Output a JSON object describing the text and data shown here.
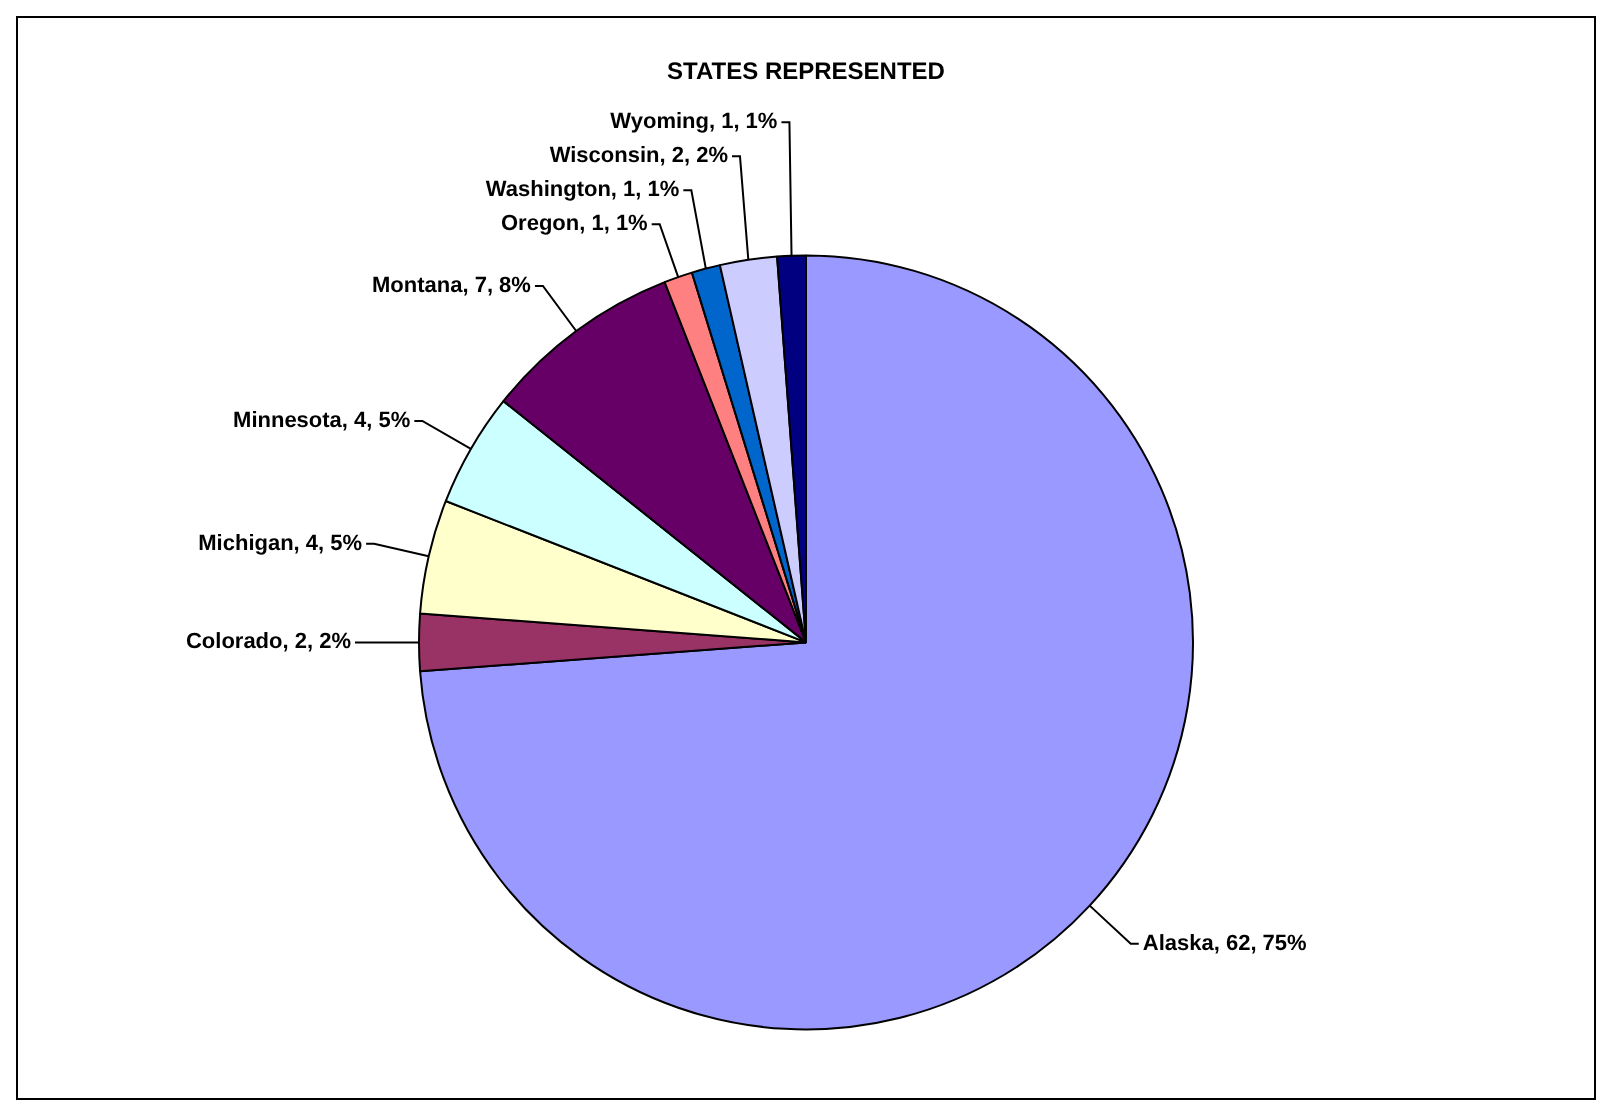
{
  "chart_data": {
    "type": "pie",
    "title": "STATES REPRESENTED",
    "categories": [
      "Alaska",
      "Colorado",
      "Michigan",
      "Minnesota",
      "Montana",
      "Oregon",
      "Washington",
      "Wisconsin",
      "Wyoming"
    ],
    "values": [
      62,
      2,
      4,
      4,
      7,
      1,
      1,
      2,
      1
    ],
    "value_labels": [
      "62, 75%",
      "2, 2%",
      "4, 5%",
      "4, 5%",
      "7, 8%",
      "1, 1%",
      "1, 1%",
      "2, 2%",
      "1, 1%"
    ],
    "colors": [
      "#9999ff",
      "#993366",
      "#ffffcc",
      "#ccffff",
      "#660066",
      "#ff8080",
      "#0066cc",
      "#ccccff",
      "#000080"
    ],
    "legend": false
  }
}
